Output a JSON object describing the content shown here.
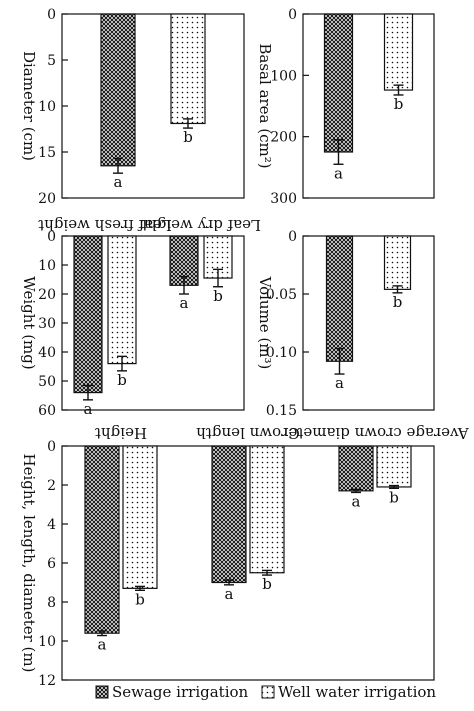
{
  "legend": {
    "sewage_label": "Sewage irrigation",
    "well_label": "Well water irrigation"
  },
  "colors": {
    "ink": "#111111",
    "background": "#ffffff"
  },
  "chart_data": [
    {
      "id": "diameter",
      "type": "bar",
      "ylabel": "Diameter (cm)",
      "ylim": [
        0,
        20
      ],
      "yticks": [
        0,
        5,
        10,
        15,
        20
      ],
      "categories": [
        ""
      ],
      "series": [
        {
          "name": "Sewage irrigation",
          "values": [
            16.5
          ],
          "error": [
            0.8
          ],
          "sig": [
            "a"
          ]
        },
        {
          "name": "Well water irrigation",
          "values": [
            11.9
          ],
          "error": [
            0.5
          ],
          "sig": [
            "b"
          ]
        }
      ]
    },
    {
      "id": "basal_area",
      "type": "bar",
      "ylabel": "Basal area (cm²)",
      "ylim": [
        0,
        300
      ],
      "yticks": [
        0,
        100,
        200,
        300
      ],
      "categories": [
        ""
      ],
      "series": [
        {
          "name": "Sewage irrigation",
          "values": [
            225
          ],
          "error": [
            20
          ],
          "sig": [
            "a"
          ]
        },
        {
          "name": "Well water irrigation",
          "values": [
            124
          ],
          "error": [
            8
          ],
          "sig": [
            "b"
          ]
        }
      ]
    },
    {
      "id": "weight",
      "type": "bar",
      "ylabel": "Weight (mg)",
      "ylim": [
        0,
        60
      ],
      "yticks": [
        0,
        10,
        20,
        30,
        40,
        50,
        60
      ],
      "categories": [
        "Leaf fresh weight",
        "Leaf dry weight"
      ],
      "series": [
        {
          "name": "Sewage irrigation",
          "values": [
            54,
            17
          ],
          "error": [
            2.5,
            3
          ],
          "sig": [
            "a",
            "a"
          ]
        },
        {
          "name": "Well water irrigation",
          "values": [
            44,
            14.5
          ],
          "error": [
            2.5,
            3
          ],
          "sig": [
            "b",
            "b"
          ]
        }
      ]
    },
    {
      "id": "volume",
      "type": "bar",
      "ylabel": "Volume (m³)",
      "ylim": [
        0,
        0.15
      ],
      "yticks": [
        0,
        0.05,
        0.1,
        0.15
      ],
      "ytick_labels": [
        "0",
        "0.05",
        "0.10",
        "0.15"
      ],
      "categories": [
        ""
      ],
      "series": [
        {
          "name": "Sewage irrigation",
          "values": [
            0.108
          ],
          "error": [
            0.011
          ],
          "sig": [
            "a"
          ]
        },
        {
          "name": "Well water irrigation",
          "values": [
            0.046
          ],
          "error": [
            0.003
          ],
          "sig": [
            "b"
          ]
        }
      ]
    },
    {
      "id": "height_length_diameter",
      "type": "bar",
      "ylabel": "Height, length, diameter (m)",
      "ylim": [
        0,
        12
      ],
      "yticks": [
        0,
        2,
        4,
        6,
        8,
        10,
        12
      ],
      "categories": [
        "Height",
        "Crown length",
        "Average crown diameter"
      ],
      "series": [
        {
          "name": "Sewage irrigation",
          "values": [
            9.6,
            7.0,
            2.3
          ],
          "error": [
            0.12,
            0.12,
            0.08
          ],
          "sig": [
            "a",
            "a",
            "a"
          ]
        },
        {
          "name": "Well water irrigation",
          "values": [
            7.3,
            6.5,
            2.1
          ],
          "error": [
            0.1,
            0.12,
            0.07
          ],
          "sig": [
            "b",
            "b",
            "b"
          ]
        }
      ]
    }
  ]
}
